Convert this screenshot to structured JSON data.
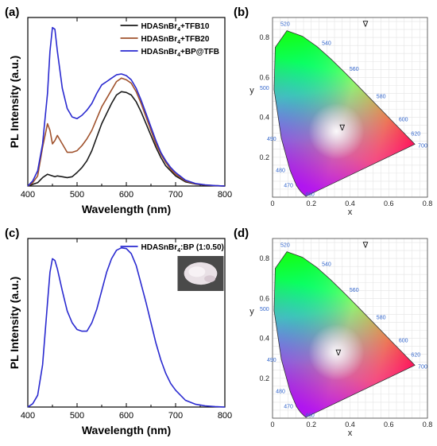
{
  "panels": [
    {
      "label": "(a)"
    },
    {
      "label": "(b)"
    },
    {
      "label": "(c)"
    },
    {
      "label": "(d)"
    }
  ],
  "chart_data": [
    {
      "type": "line",
      "panel": "(a)",
      "xlabel": "Wavelength (nm)",
      "ylabel": "PL Intensity (a.u.)",
      "xlim": [
        400,
        800
      ],
      "xticks": [
        "400",
        "500",
        "600",
        "700",
        "800"
      ],
      "ylim": [
        0,
        1
      ],
      "yticks_shown": false,
      "grid": false,
      "legend_position": "top-right",
      "x": [
        400,
        410,
        420,
        430,
        440,
        445,
        450,
        455,
        460,
        470,
        480,
        490,
        500,
        510,
        520,
        530,
        540,
        550,
        560,
        570,
        580,
        590,
        600,
        610,
        620,
        630,
        640,
        650,
        660,
        670,
        680,
        690,
        700,
        720,
        740,
        760,
        780,
        800
      ],
      "series": [
        {
          "name": "HDASnBr4+TFB10",
          "color": "#1a1a1a",
          "values": [
            0,
            0.01,
            0.02,
            0.05,
            0.07,
            0.065,
            0.06,
            0.055,
            0.06,
            0.055,
            0.05,
            0.055,
            0.08,
            0.11,
            0.15,
            0.21,
            0.29,
            0.37,
            0.43,
            0.49,
            0.54,
            0.56,
            0.555,
            0.54,
            0.5,
            0.44,
            0.37,
            0.3,
            0.23,
            0.17,
            0.12,
            0.09,
            0.06,
            0.025,
            0.012,
            0.005,
            0.002,
            0
          ]
        },
        {
          "name": "HDASnBr4+TFB20",
          "color": "#a0522d",
          "values": [
            0,
            0.02,
            0.06,
            0.23,
            0.37,
            0.33,
            0.25,
            0.27,
            0.3,
            0.25,
            0.2,
            0.2,
            0.21,
            0.24,
            0.28,
            0.33,
            0.4,
            0.47,
            0.52,
            0.57,
            0.62,
            0.64,
            0.63,
            0.61,
            0.56,
            0.49,
            0.41,
            0.33,
            0.25,
            0.19,
            0.14,
            0.1,
            0.07,
            0.03,
            0.013,
            0.006,
            0.002,
            0
          ]
        },
        {
          "name": "HDASnBr4+BP@TFB",
          "color": "#2a2ad0",
          "values": [
            0,
            0.03,
            0.09,
            0.25,
            0.55,
            0.8,
            0.94,
            0.93,
            0.8,
            0.58,
            0.46,
            0.41,
            0.4,
            0.42,
            0.45,
            0.49,
            0.55,
            0.6,
            0.62,
            0.64,
            0.66,
            0.665,
            0.655,
            0.63,
            0.58,
            0.51,
            0.43,
            0.35,
            0.27,
            0.2,
            0.15,
            0.11,
            0.08,
            0.035,
            0.015,
            0.007,
            0.003,
            0
          ]
        }
      ]
    },
    {
      "type": "scatter",
      "panel": "(b)",
      "xlabel": "x",
      "ylabel": "y",
      "xlim": [
        0,
        0.8
      ],
      "ylim": [
        0,
        0.9
      ],
      "xticks": [
        "0",
        "0.2",
        "0.4",
        "0.6",
        "0.8"
      ],
      "yticks": [
        "0.2",
        "0.4",
        "0.6",
        "0.8"
      ],
      "grid": true,
      "wavelength_labels": [
        "460",
        "470",
        "480",
        "490",
        "500",
        "520",
        "540",
        "560",
        "580",
        "600",
        "620",
        "700"
      ],
      "points": [
        {
          "x": 0.36,
          "y": 0.35,
          "marker": "∇"
        },
        {
          "x": 0.48,
          "y": 0.87,
          "marker": "∇"
        }
      ]
    },
    {
      "type": "line",
      "panel": "(c)",
      "xlabel": "Wavelength (nm)",
      "ylabel": "PL Intensity (a.u.)",
      "xlim": [
        400,
        800
      ],
      "xticks": [
        "400",
        "500",
        "600",
        "700",
        "800"
      ],
      "ylim": [
        0,
        1
      ],
      "yticks_shown": false,
      "grid": false,
      "legend_position": "top-right",
      "inset_photo": true,
      "x": [
        400,
        410,
        420,
        430,
        440,
        445,
        450,
        455,
        460,
        470,
        480,
        490,
        500,
        510,
        520,
        530,
        540,
        550,
        560,
        570,
        580,
        590,
        600,
        610,
        620,
        630,
        640,
        650,
        660,
        670,
        680,
        690,
        700,
        720,
        740,
        760,
        780,
        800
      ],
      "series": [
        {
          "name": "HDASnBr4:BP (1:0.50)",
          "color": "#2a2ad0",
          "values": [
            0,
            0.02,
            0.07,
            0.25,
            0.62,
            0.8,
            0.88,
            0.87,
            0.82,
            0.69,
            0.57,
            0.5,
            0.46,
            0.45,
            0.45,
            0.5,
            0.58,
            0.69,
            0.8,
            0.88,
            0.93,
            0.945,
            0.94,
            0.91,
            0.84,
            0.73,
            0.62,
            0.5,
            0.38,
            0.28,
            0.2,
            0.14,
            0.1,
            0.04,
            0.017,
            0.007,
            0.003,
            0
          ]
        }
      ]
    },
    {
      "type": "scatter",
      "panel": "(d)",
      "xlabel": "x",
      "ylabel": "y",
      "xlim": [
        0,
        0.8
      ],
      "ylim": [
        0,
        0.9
      ],
      "xticks": [
        "0",
        "0.2",
        "0.4",
        "0.6",
        "0.8"
      ],
      "yticks": [
        "0.2",
        "0.4",
        "0.6",
        "0.8"
      ],
      "grid": true,
      "wavelength_labels": [
        "460",
        "470",
        "480",
        "490",
        "500",
        "520",
        "540",
        "560",
        "580",
        "600",
        "620",
        "700"
      ],
      "points": [
        {
          "x": 0.34,
          "y": 0.33,
          "marker": "∇"
        },
        {
          "x": 0.48,
          "y": 0.87,
          "marker": "∇"
        }
      ]
    }
  ]
}
